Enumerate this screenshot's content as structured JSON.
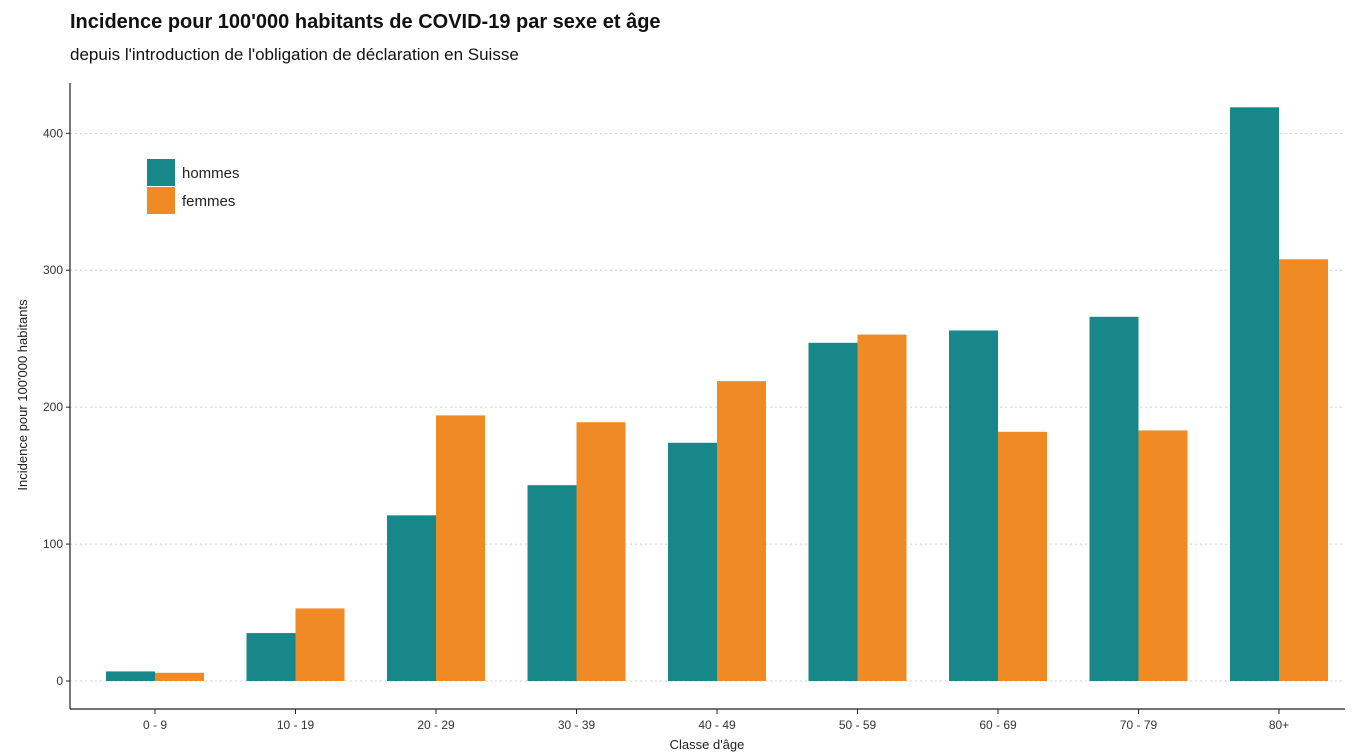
{
  "chart_data": {
    "type": "bar",
    "title": "Incidence pour 100'000 habitants de COVID-19 par sexe et âge",
    "subtitle": "depuis l'introduction de l'obligation de déclaration en Suisse",
    "xlabel": "Classe d'âge",
    "ylabel": "Incidence pour 100'000 habitants",
    "categories": [
      "0 - 9",
      "10 - 19",
      "20 - 29",
      "30 - 39",
      "40 - 49",
      "50 - 59",
      "60 - 69",
      "70 - 79",
      "80+"
    ],
    "series": [
      {
        "name": "hommes",
        "color": "#17878a",
        "values": [
          7,
          35,
          121,
          143,
          174,
          247,
          256,
          266,
          419
        ]
      },
      {
        "name": "femmes",
        "color": "#f08a24",
        "values": [
          6,
          53,
          194,
          189,
          219,
          253,
          182,
          183,
          308
        ]
      }
    ],
    "ylim": [
      0,
      438
    ],
    "yticks": [
      0,
      100,
      200,
      300,
      400
    ],
    "grid": "horizontal dotted",
    "legend_position": "top-left"
  }
}
